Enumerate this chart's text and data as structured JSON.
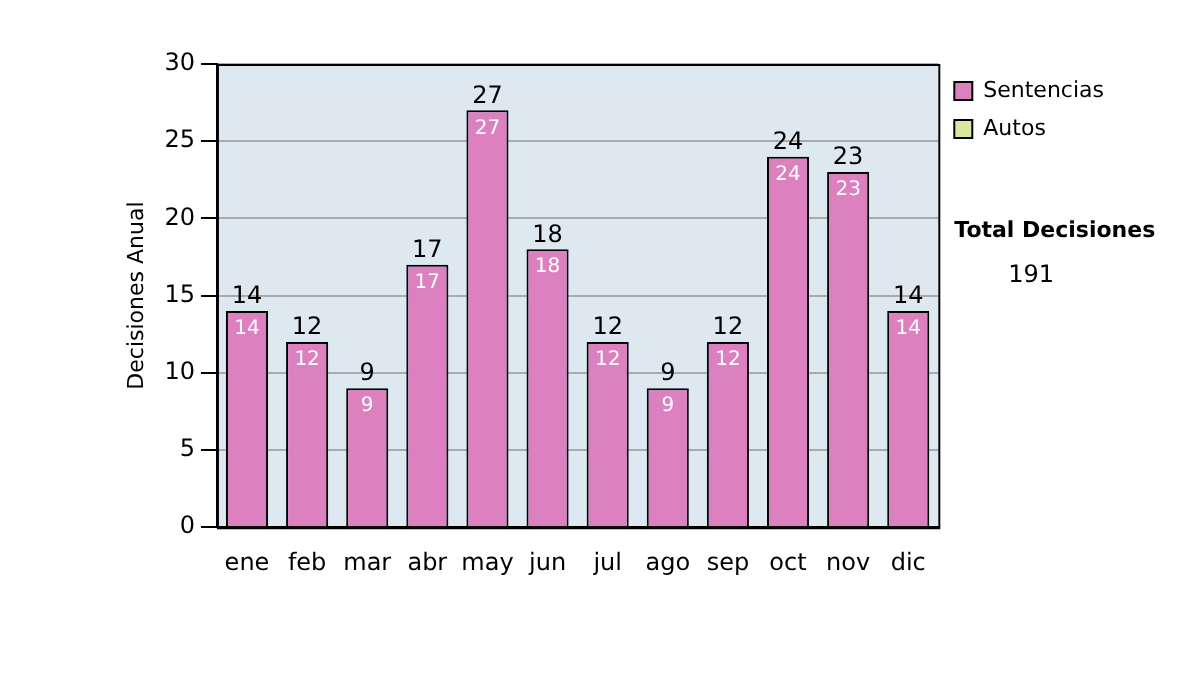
{
  "chart_data": {
    "type": "bar",
    "ylabel": "Decisiones Anual",
    "categories": [
      "ene",
      "feb",
      "mar",
      "abr",
      "may",
      "jun",
      "jul",
      "ago",
      "sep",
      "oct",
      "nov",
      "dic"
    ],
    "stacked": true,
    "series": [
      {
        "name": "Sentencias",
        "color": "#dd80c0",
        "values": [
          14,
          12,
          9,
          17,
          27,
          18,
          12,
          9,
          12,
          24,
          23,
          14
        ],
        "value_labels": [
          "14",
          "12",
          "9",
          "17",
          "27",
          "18",
          "12",
          "9",
          "12",
          "24",
          "23",
          "14"
        ]
      },
      {
        "name": "Autos",
        "color": "#d8e8a0",
        "values": [
          0,
          0,
          0,
          0,
          0,
          0,
          0,
          0,
          0,
          0,
          0,
          0
        ]
      }
    ],
    "totals": [
      "14",
      "12",
      "9",
      "17",
      "27",
      "18",
      "12",
      "9",
      "12",
      "24",
      "23",
      "14"
    ],
    "ylim": [
      0,
      30
    ],
    "yticks": [
      0,
      5,
      10,
      15,
      20,
      25,
      30
    ],
    "grid": "y",
    "legend": "right",
    "annotations": [
      "Total Decisiones",
      "191"
    ]
  }
}
